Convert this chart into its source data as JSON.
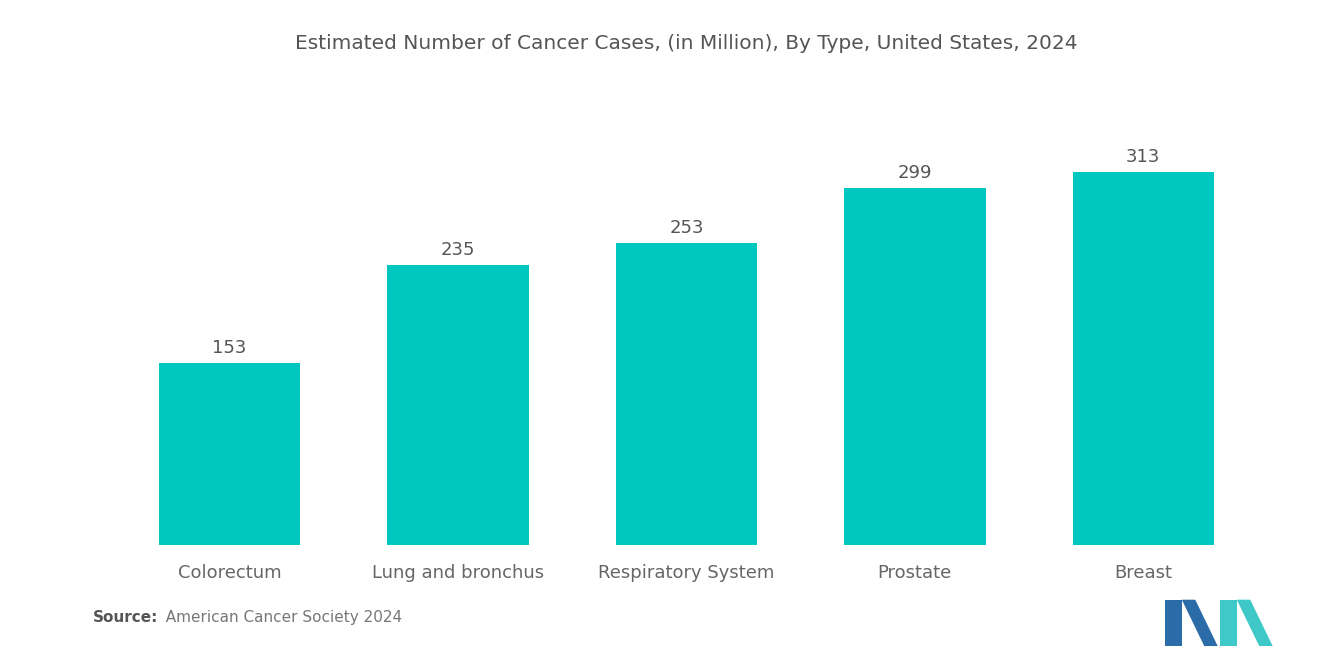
{
  "title": "Estimated Number of Cancer Cases, (in Million), By Type, United States, 2024",
  "categories": [
    "Colorectum",
    "Lung and bronchus",
    "Respiratory System",
    "Prostate",
    "Breast"
  ],
  "values": [
    153,
    235,
    253,
    299,
    313
  ],
  "bar_color": "#00C8C0",
  "value_color": "#555555",
  "title_color": "#555555",
  "label_color": "#666666",
  "background_color": "#ffffff",
  "source_bold": "Source:",
  "source_normal": "  American Cancer Society 2024",
  "ylim": [
    0,
    390
  ],
  "bar_width": 0.62,
  "title_fontsize": 14.5,
  "label_fontsize": 13,
  "value_fontsize": 13,
  "source_fontsize": 11,
  "logo_blue": "#2B6CA8",
  "logo_teal": "#3EC8C8"
}
